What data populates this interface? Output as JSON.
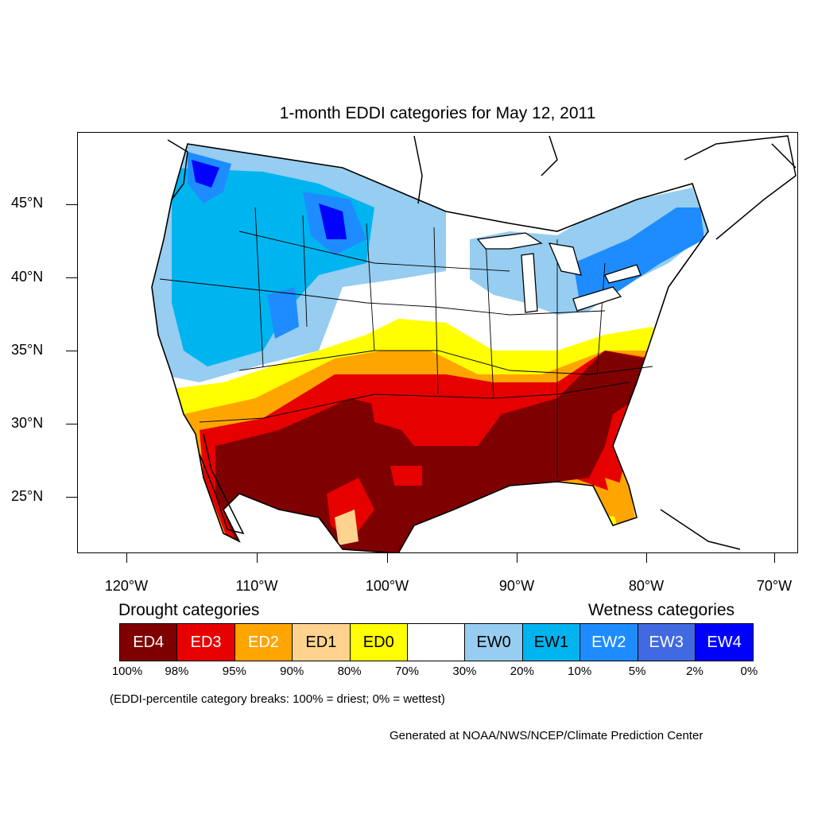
{
  "title": "1-month EDDI categories for May 12, 2011",
  "lat_labels": [
    "45°N",
    "40°N",
    "35°N",
    "30°N",
    "25°N"
  ],
  "lon_labels": [
    "120°W",
    "110°W",
    "100°W",
    "90°W",
    "80°W",
    "70°W"
  ],
  "legend": {
    "drought_heading": "Drought categories",
    "wetness_heading": "Wetness categories",
    "categories": [
      {
        "label": "ED4",
        "color": "#7f0000",
        "text_color": "#ffffff"
      },
      {
        "label": "ED3",
        "color": "#e60000",
        "text_color": "#ffffff"
      },
      {
        "label": "ED2",
        "color": "#ffa500",
        "text_color": "#ffffff"
      },
      {
        "label": "ED1",
        "color": "#ffd38f",
        "text_color": "#000000"
      },
      {
        "label": "ED0",
        "color": "#ffff00",
        "text_color": "#000000"
      },
      {
        "label": "",
        "color": "#ffffff",
        "text_color": "#000000"
      },
      {
        "label": "EW0",
        "color": "#96cdf0",
        "text_color": "#000000"
      },
      {
        "label": "EW1",
        "color": "#00b4f0",
        "text_color": "#000000"
      },
      {
        "label": "EW2",
        "color": "#1e8cff",
        "text_color": "#ffffff"
      },
      {
        "label": "EW3",
        "color": "#4169e1",
        "text_color": "#ffffff"
      },
      {
        "label": "EW4",
        "color": "#0000ff",
        "text_color": "#ffffff"
      }
    ],
    "breaks": [
      "100%",
      "98%",
      "95%",
      "90%",
      "80%",
      "70%",
      "30%",
      "20%",
      "10%",
      "5%",
      "2%",
      "0%"
    ]
  },
  "note": "(EDDI-percentile category breaks: 100% = driest; 0% = wettest)",
  "credit": "Generated at NOAA/NWS/NCEP/Climate Prediction Center"
}
